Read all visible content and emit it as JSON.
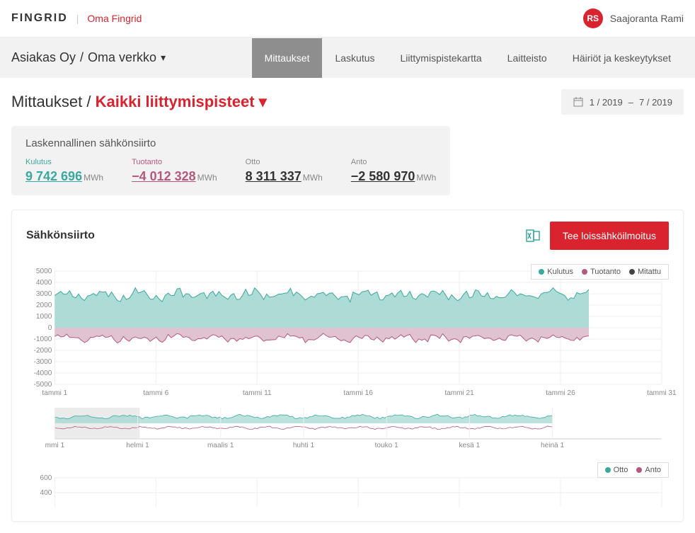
{
  "header": {
    "logo_main": "FINGRID",
    "logo_sub": "Oma Fingrid",
    "user_initials": "RS",
    "user_name": "Saajoranta Rami"
  },
  "nav": {
    "breadcrumb_1": "Asiakas Oy",
    "breadcrumb_2": "Oma verkko",
    "tabs": {
      "mittaukset": "Mittaukset",
      "laskutus": "Laskutus",
      "liittymispistekartta": "Liittymispistekartta",
      "laitteisto": "Laitteisto",
      "hairiot": "Häiriöt ja keskeytykset"
    }
  },
  "page": {
    "title_prefix": "Mittaukset",
    "title_highlight": "Kaikki liittymispisteet",
    "date_from": "1  /  2019",
    "date_sep": "–",
    "date_to": "7  /  2019"
  },
  "summary": {
    "title": "Laskennallinen sähkönsiirto",
    "kulutus_label": "Kulutus",
    "kulutus_value": "9 742 696",
    "tuotanto_label": "Tuotanto",
    "tuotanto_value": "−4 012 328",
    "otto_label": "Otto",
    "otto_value": "8 311 337",
    "anto_label": "Anto",
    "anto_value": "−2 580 970",
    "unit": "MWh"
  },
  "chart": {
    "title": "Sähkönsiirto",
    "button": "Tee loissähköilmoitus",
    "legend": {
      "kulutus": "Kulutus",
      "tuotanto": "Tuotanto",
      "mitattu": "Mitattu"
    },
    "legend2": {
      "otto": "Otto",
      "anto": "Anto"
    },
    "colors": {
      "kulutus_fill": "#9fd6cf",
      "kulutus_line": "#3aa89e",
      "tuotanto_fill": "#d9b8c9",
      "tuotanto_line": "#b5587d",
      "mitattu": "#444444",
      "grid": "#eeeeee",
      "axis": "#cccccc",
      "selection": "#dddddd"
    },
    "y_ticks": [
      "5000",
      "4000",
      "3000",
      "2000",
      "1000",
      "0",
      "-1000",
      "-2000",
      "-3000",
      "-4000",
      "-5000"
    ],
    "y_min": -5000,
    "y_max": 5000,
    "x_ticks": [
      "tammi 1",
      "tammi 6",
      "tammi 11",
      "tammi 16",
      "tammi 21",
      "tammi 26",
      "tammi 31"
    ],
    "overview_x_ticks": [
      "mmi 1",
      "helmi 1",
      "maalis 1",
      "huhti 1",
      "touko 1",
      "kesä 1",
      "heinä 1"
    ],
    "sec_y_ticks": [
      "600",
      "400"
    ]
  }
}
